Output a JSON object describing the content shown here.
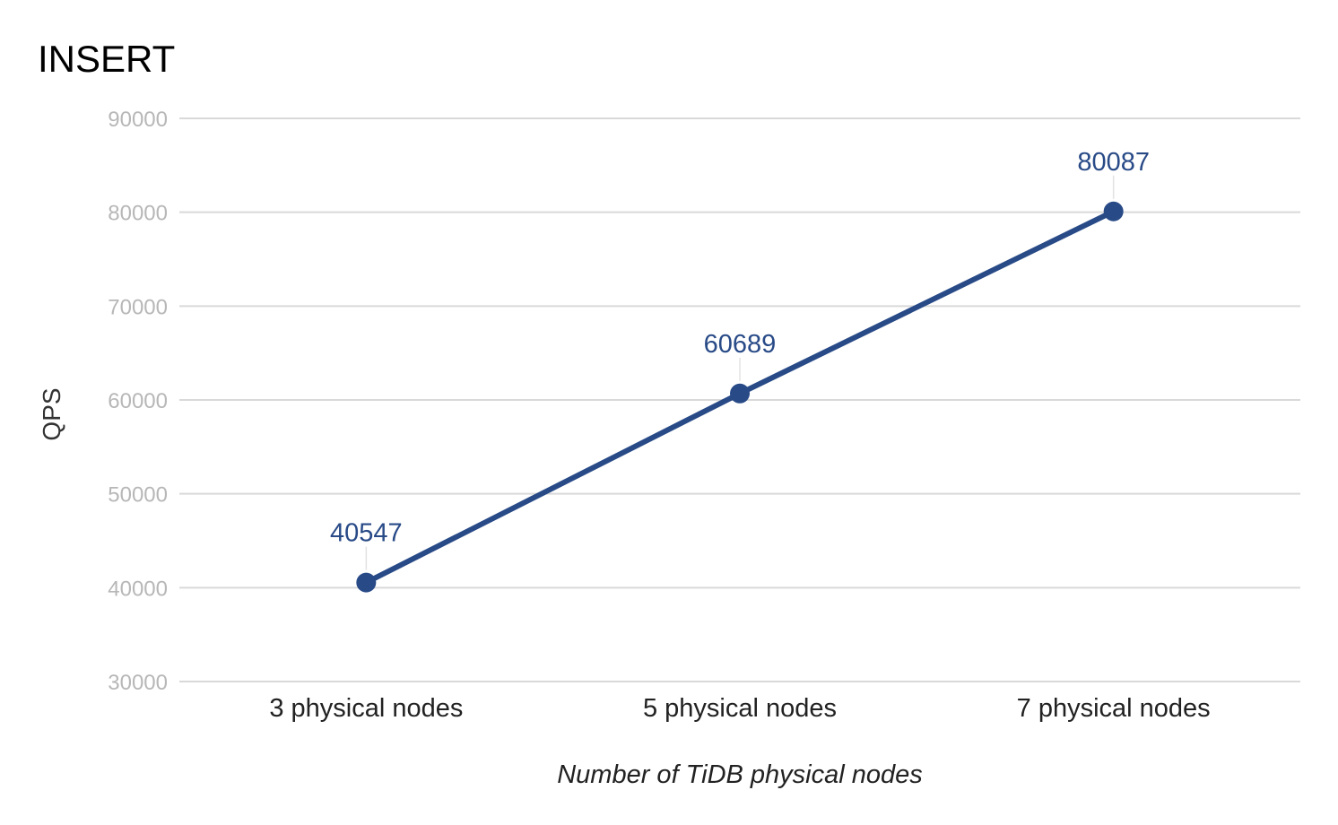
{
  "chart_data": {
    "type": "line",
    "title": "INSERT",
    "xlabel": "Number of TiDB physical nodes",
    "ylabel": "QPS",
    "categories": [
      "3 physical nodes",
      "5 physical nodes",
      "7 physical nodes"
    ],
    "series": [
      {
        "values": [
          40547,
          60689,
          80087
        ],
        "color": "#284a87"
      }
    ],
    "data_labels": [
      "40547",
      "60689",
      "80087"
    ],
    "yticks": [
      30000,
      40000,
      50000,
      60000,
      70000,
      80000,
      90000
    ],
    "ytick_labels": [
      "30000",
      "40000",
      "50000",
      "60000",
      "70000",
      "80000",
      "90000"
    ],
    "ylim": [
      30000,
      90000
    ],
    "grid": true,
    "legend": "none"
  }
}
